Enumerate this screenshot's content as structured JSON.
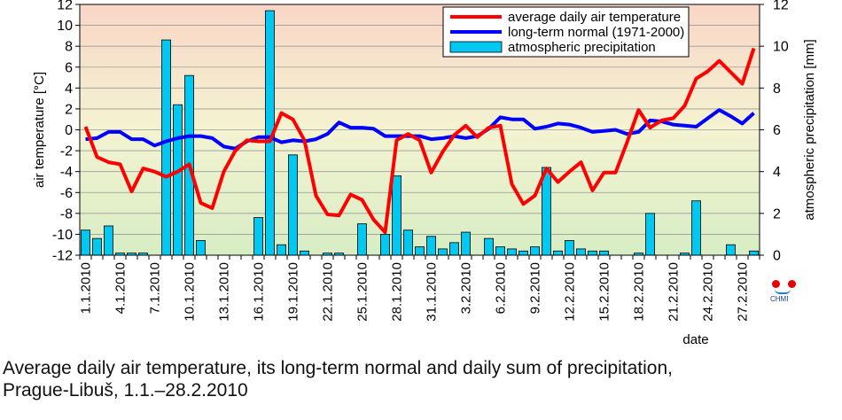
{
  "caption": {
    "line1": "Average daily air temperature, its long-term normal and daily sum of precipitation,",
    "line2": "Prague-Libuš, 1.1.–28.2.2010"
  },
  "logo": {
    "text": "CHMI",
    "icon": "chmi-logo-icon"
  },
  "chart_data": {
    "type": "line+bar",
    "xlabel": "date",
    "ylabel_left": "air temperature [°C]",
    "ylabel_right": "atmospheric precipitation [mm]",
    "ylim_left": [
      -12,
      12
    ],
    "ylim_right": [
      0,
      12
    ],
    "yticks_left": [
      12,
      10,
      8,
      6,
      4,
      2,
      0,
      -2,
      -4,
      -6,
      -8,
      -10,
      -12
    ],
    "yticks_right": [
      12,
      10,
      8,
      6,
      4,
      2,
      0
    ],
    "x": [
      "1.1.2010",
      "2.1.2010",
      "3.1.2010",
      "4.1.2010",
      "5.1.2010",
      "6.1.2010",
      "7.1.2010",
      "8.1.2010",
      "9.1.2010",
      "10.1.2010",
      "11.1.2010",
      "12.1.2010",
      "13.1.2010",
      "14.1.2010",
      "15.1.2010",
      "16.1.2010",
      "17.1.2010",
      "18.1.2010",
      "19.1.2010",
      "20.1.2010",
      "21.1.2010",
      "22.1.2010",
      "23.1.2010",
      "24.1.2010",
      "25.1.2010",
      "26.1.2010",
      "27.1.2010",
      "28.1.2010",
      "29.1.2010",
      "30.1.2010",
      "31.1.2010",
      "1.2.2010",
      "2.2.2010",
      "3.2.2010",
      "4.2.2010",
      "5.2.2010",
      "6.2.2010",
      "7.2.2010",
      "8.2.2010",
      "9.2.2010",
      "10.2.2010",
      "11.2.2010",
      "12.2.2010",
      "13.2.2010",
      "14.2.2010",
      "15.2.2010",
      "16.2.2010",
      "17.2.2010",
      "18.2.2010",
      "19.2.2010",
      "20.2.2010",
      "21.2.2010",
      "22.2.2010",
      "23.2.2010",
      "24.2.2010",
      "25.2.2010",
      "26.2.2010",
      "27.2.2010",
      "28.2.2010"
    ],
    "x_tick_labels": [
      "1.1.2010",
      "4.1.2010",
      "7.1.2010",
      "10.1.2010",
      "13.1.2010",
      "16.1.2010",
      "19.1.2010",
      "22.1.2010",
      "25.1.2010",
      "28.1.2010",
      "31.1.2010",
      "3.2.2010",
      "6.2.2010",
      "9.2.2010",
      "12.2.2010",
      "15.2.2010",
      "18.2.2010",
      "21.2.2010",
      "24.2.2010",
      "27.2.2010"
    ],
    "series": [
      {
        "name": "average daily air temperature",
        "type": "line",
        "axis": "left",
        "color": "#ff0000",
        "values": [
          0.3,
          -2.6,
          -3.1,
          -3.3,
          -5.9,
          -3.7,
          -4.0,
          -4.5,
          -4.0,
          -3.3,
          -7.0,
          -7.5,
          -4.0,
          -2.0,
          -1.0,
          -1.1,
          -1.1,
          1.6,
          1.0,
          -1.0,
          -6.3,
          -8.1,
          -8.2,
          -6.2,
          -6.7,
          -8.6,
          -9.8,
          -1.0,
          -0.4,
          -1.0,
          -4.1,
          -2.1,
          -0.5,
          0.4,
          -0.7,
          0.2,
          0.4,
          -5.2,
          -7.1,
          -6.3,
          -3.7,
          -5.0,
          -4.0,
          -3.1,
          -5.8,
          -4.1,
          -4.1,
          -1.2,
          1.9,
          0.2,
          0.9,
          1.1,
          2.3,
          4.9,
          5.6,
          6.6,
          5.5,
          4.4,
          7.8
        ]
      },
      {
        "name": "long-term normal (1971-2000)",
        "type": "line",
        "axis": "left",
        "color": "#0000ff",
        "values": [
          -0.9,
          -0.8,
          -0.2,
          -0.2,
          -0.9,
          -0.9,
          -1.5,
          -1.1,
          -0.8,
          -0.6,
          -0.6,
          -0.8,
          -1.6,
          -1.8,
          -1.1,
          -0.7,
          -0.7,
          -1.2,
          -1.0,
          -1.1,
          -0.9,
          -0.4,
          0.7,
          0.2,
          0.2,
          0.1,
          -0.6,
          -0.6,
          -0.6,
          -0.6,
          -0.9,
          -0.8,
          -0.6,
          -0.8,
          -0.6,
          0.1,
          1.2,
          1.0,
          1.0,
          0.1,
          0.3,
          0.6,
          0.5,
          0.2,
          -0.2,
          -0.1,
          0.0,
          -0.4,
          -0.2,
          0.9,
          0.8,
          0.5,
          0.4,
          0.3,
          1.1,
          1.9,
          1.3,
          0.6,
          1.6
        ]
      },
      {
        "name": "atmospheric precipitation",
        "type": "bar",
        "axis": "right",
        "color": "#00c8f0",
        "values": [
          1.2,
          0.8,
          1.4,
          0.1,
          0.1,
          0.1,
          0.0,
          10.3,
          7.2,
          8.6,
          0.7,
          0.0,
          0.0,
          0.0,
          0.0,
          1.8,
          11.7,
          0.5,
          4.8,
          0.2,
          0.0,
          0.1,
          0.1,
          0.0,
          1.5,
          0.0,
          1.0,
          3.8,
          1.2,
          0.4,
          0.9,
          0.3,
          0.6,
          1.1,
          0.0,
          0.8,
          0.4,
          0.3,
          0.2,
          0.4,
          4.2,
          0.2,
          0.7,
          0.3,
          0.2,
          0.2,
          0.0,
          0.0,
          0.1,
          2.0,
          0.0,
          0.0,
          0.1,
          2.6,
          0.0,
          0.0,
          0.5,
          0.0,
          0.2
        ]
      }
    ],
    "legend_placement": "top-right",
    "background": "gradient",
    "grid": "horizontal"
  }
}
